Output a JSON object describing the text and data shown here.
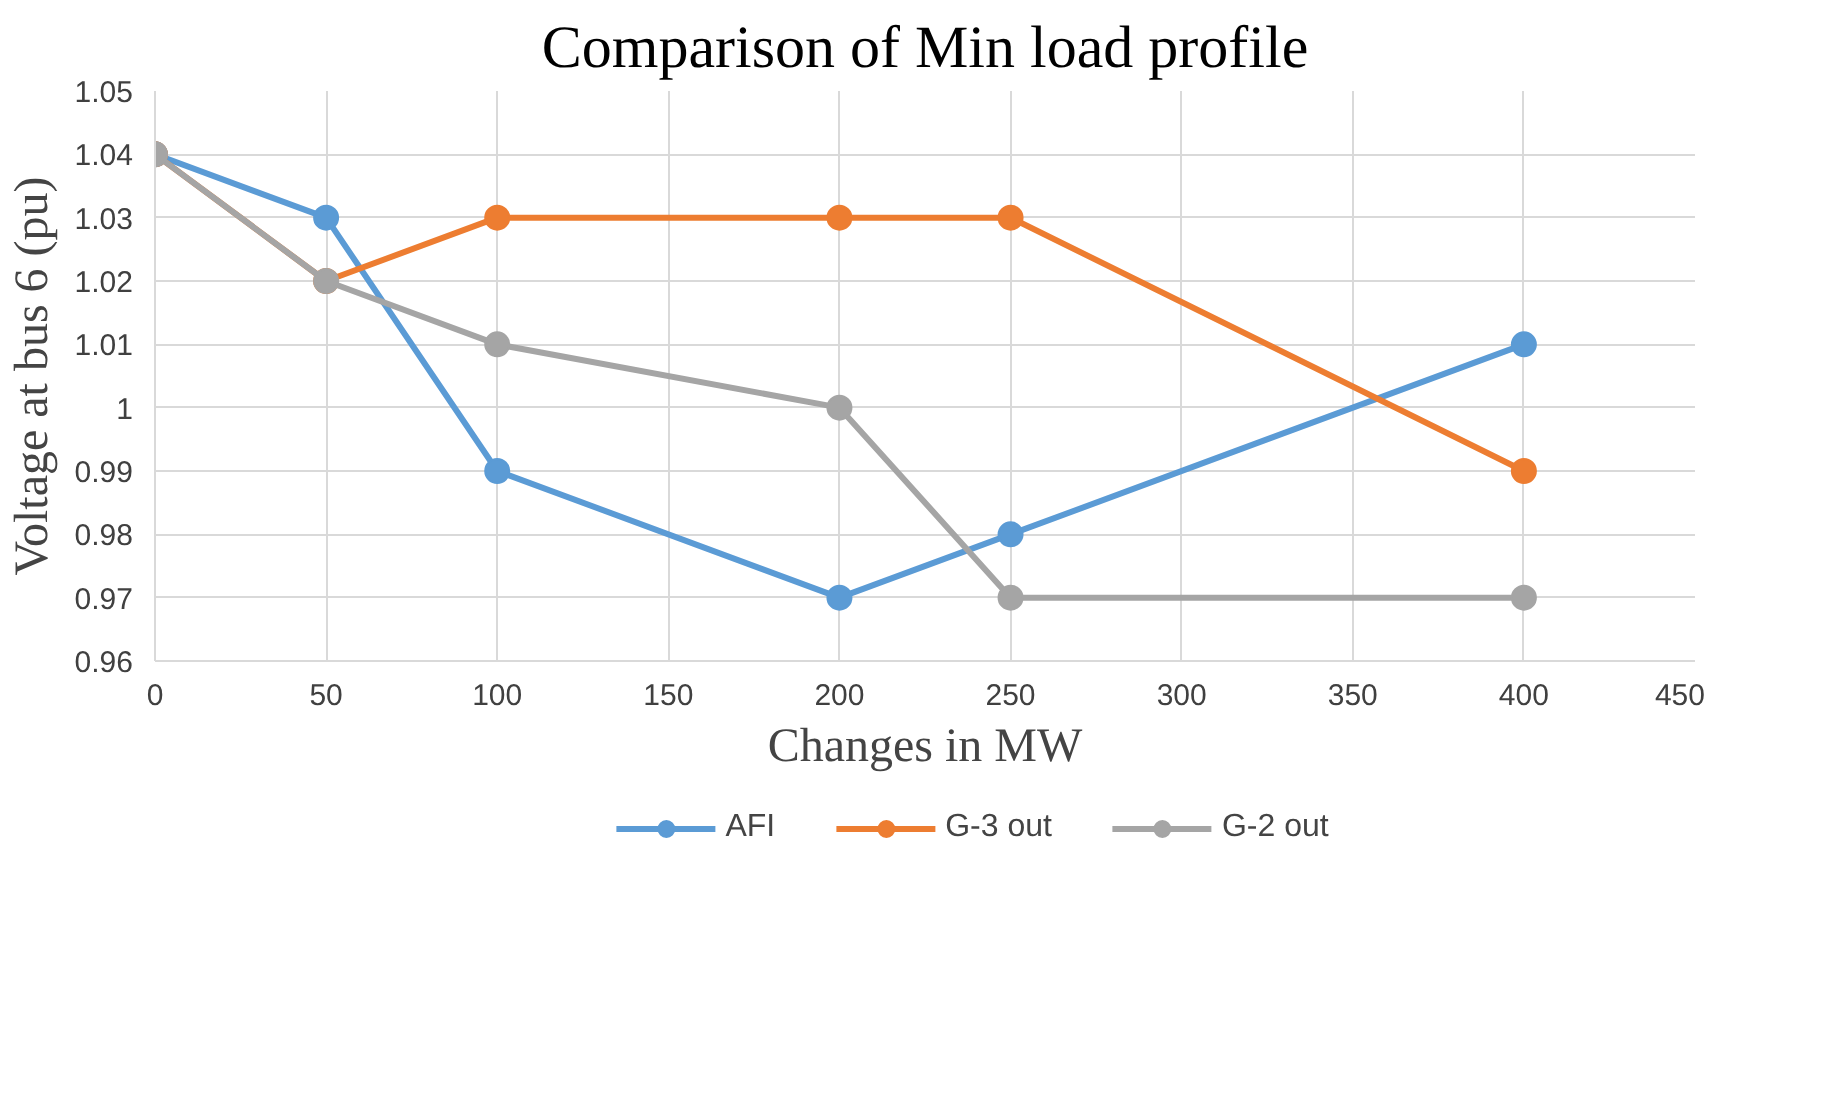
{
  "chart_data": {
    "type": "line",
    "title": "Comparison of Min load profile",
    "xlabel": "Changes in MW",
    "ylabel": "Voltage at bus 6 (pu)",
    "x": [
      0,
      50,
      100,
      200,
      250,
      400
    ],
    "series": [
      {
        "name": "AFI",
        "color": "#5b9bd5",
        "values": [
          1.04,
          1.03,
          0.99,
          0.97,
          0.98,
          1.01
        ]
      },
      {
        "name": "G-3 out",
        "color": "#ed7d31",
        "values": [
          1.04,
          1.02,
          1.03,
          1.03,
          1.03,
          0.99
        ]
      },
      {
        "name": "G-2 out",
        "color": "#a5a5a5",
        "values": [
          1.04,
          1.02,
          1.01,
          1.0,
          0.97,
          0.97
        ]
      }
    ],
    "xlim": [
      0,
      450
    ],
    "xticks": [
      0,
      50,
      100,
      150,
      200,
      250,
      300,
      350,
      400,
      450
    ],
    "ylim": [
      0.96,
      1.05
    ],
    "yticks": [
      0.96,
      0.97,
      0.98,
      0.99,
      1,
      1.01,
      1.02,
      1.03,
      1.04,
      1.05
    ],
    "grid": true,
    "legend": "bottom",
    "marker": "circle",
    "line_style": "solid"
  }
}
